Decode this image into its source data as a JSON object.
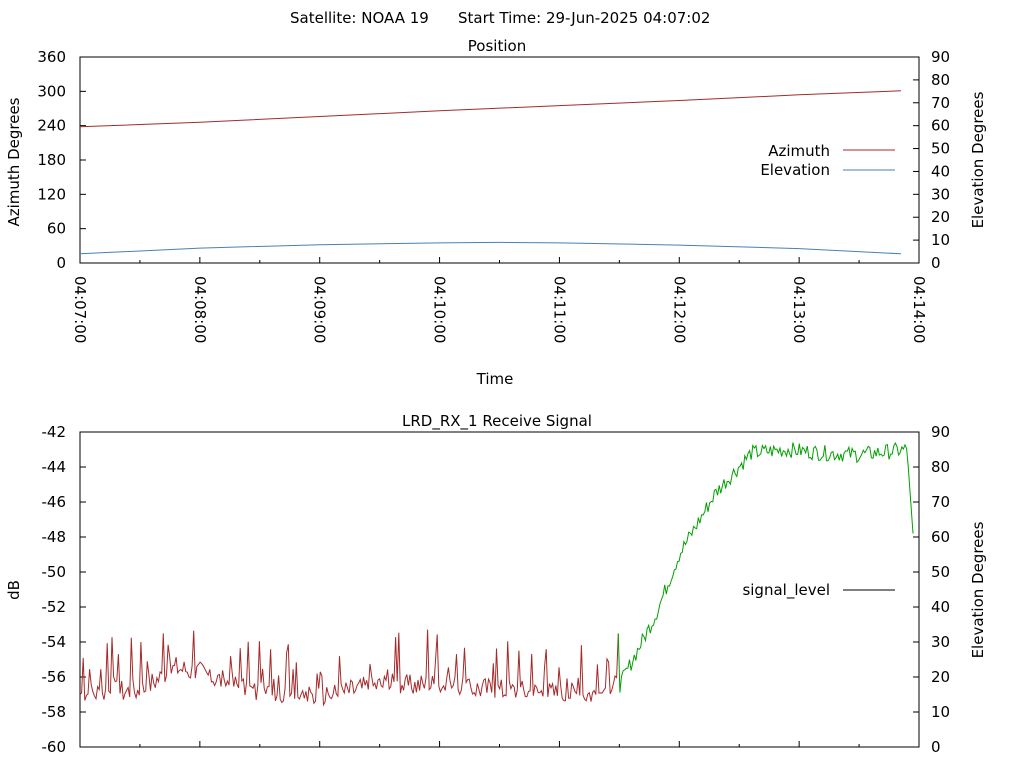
{
  "header": {
    "satellite_label": "Satellite: NOAA 19",
    "start_time_label": "Start Time: 29-Jun-2025 04:07:02"
  },
  "chart_data": [
    {
      "type": "line",
      "title": "Position",
      "xlabel": "Time",
      "ylabel": "Azimuth Degrees",
      "y2label": "Elevation Degrees",
      "x_ticks": [
        "04:07:00",
        "04:08:00",
        "04:09:00",
        "04:10:00",
        "04:11:00",
        "04:12:00",
        "04:13:00",
        "04:14:00"
      ],
      "y_ticks": [
        "0",
        "60",
        "120",
        "180",
        "240",
        "300",
        "360"
      ],
      "y2_ticks": [
        "0",
        "10",
        "20",
        "30",
        "40",
        "50",
        "60",
        "70",
        "80",
        "90"
      ],
      "ylim": [
        0,
        360
      ],
      "y2lim": [
        0,
        90
      ],
      "legend_position": "right",
      "x_minutes": [
        0.0,
        1.0,
        2.0,
        3.0,
        4.0,
        5.0,
        6.0,
        6.85
      ],
      "series": [
        {
          "name": "Azimuth",
          "axis": "y",
          "color": "#a52a2a",
          "x": [
            0.0,
            1.0,
            2.0,
            3.0,
            4.0,
            5.0,
            6.0,
            6.85
          ],
          "values": [
            238,
            246,
            256,
            266,
            275,
            284,
            294,
            301
          ]
        },
        {
          "name": "Elevation",
          "axis": "y2",
          "color": "#4682b4",
          "x": [
            0.0,
            1.0,
            2.0,
            3.0,
            3.5,
            4.0,
            5.0,
            6.0,
            6.85
          ],
          "values": [
            4,
            6.5,
            8.0,
            8.8,
            9.0,
            8.8,
            7.8,
            6.3,
            4
          ]
        }
      ]
    },
    {
      "type": "line",
      "title": "LRD_RX_1 Receive Signal",
      "ylabel": "dB",
      "y2label": "Elevation Degrees",
      "y_ticks": [
        "-42",
        "-44",
        "-46",
        "-48",
        "-50",
        "-52",
        "-54",
        "-56",
        "-58",
        "-60"
      ],
      "y2_ticks": [
        "0",
        "10",
        "20",
        "30",
        "40",
        "50",
        "60",
        "70",
        "80",
        "90"
      ],
      "ylim": [
        -60,
        -42
      ],
      "y2lim": [
        0,
        90
      ],
      "legend_position": "right",
      "series": [
        {
          "name": "signal_level",
          "color_low": "#a52a2a",
          "color_high": "#00a000",
          "x": [
            0.0,
            0.5,
            0.8,
            1.0,
            1.5,
            2.0,
            2.5,
            3.0,
            3.5,
            4.0,
            4.3,
            4.5,
            4.8,
            5.0,
            5.3,
            5.6,
            5.9,
            6.2,
            6.5,
            6.9,
            6.95
          ],
          "values": [
            -57.0,
            -56.8,
            -55.5,
            -55.8,
            -57.0,
            -57.2,
            -56.5,
            -56.5,
            -56.8,
            -57.0,
            -57.0,
            -56.5,
            -52.5,
            -49.0,
            -45.5,
            -43.2,
            -43.0,
            -43.2,
            -43.3,
            -43.0,
            -47.8
          ]
        }
      ]
    }
  ]
}
